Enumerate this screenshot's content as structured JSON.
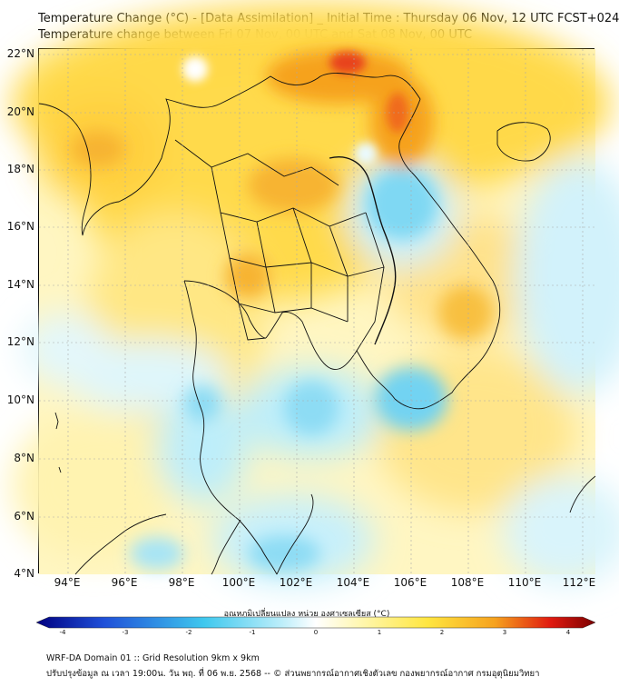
{
  "header": {
    "title_line1": "Temperature Change (°C) - [Data Assimilation] _ Initial Time : Thursday 06 Nov, 12 UTC FCST+024",
    "title_line2": "Temperature change between Fri 07 Nov, 00 UTC and Sat 08 Nov, 00 UTC"
  },
  "map": {
    "lat_labels": [
      "22°N",
      "20°N",
      "18°N",
      "16°N",
      "14°N",
      "12°N",
      "10°N",
      "8°N",
      "6°N",
      "4°N"
    ],
    "lon_labels": [
      "94°E",
      "96°E",
      "98°E",
      "100°E",
      "102°E",
      "104°E",
      "106°E",
      "108°E",
      "110°E",
      "112°E"
    ]
  },
  "colorbar": {
    "title": "อุณหภูมิเปลี่ยนแปลง หน่วย องศาเซลเซียส (°C)",
    "ticks": [
      "-4",
      "-3",
      "-2",
      "-1",
      "0",
      "1",
      "2",
      "3",
      "4"
    ],
    "colors": {
      "dark_blue": "#000080",
      "blue": "#1f4fd8",
      "cyan": "#3fc8ee",
      "light_cyan": "#bdeefa",
      "white": "#ffffff",
      "light_yellow": "#fff7b0",
      "yellow": "#ffe640",
      "orange": "#f6a21e",
      "red": "#e01a10",
      "dark_red": "#7a0000"
    }
  },
  "footer": {
    "line1": "WRF-DA Domain 01 :: Grid Resolution 9km x 9km",
    "line2": "ปรับปรุงข้อมูล ณ เวลา 19:00น. วัน พฤ. ที่ 06 พ.ย. 2568 -- © ส่วนพยากรณ์อากาศเชิงตัวเลข กองพยากรณ์อากาศ กรมอุตุนิยมวิทยา"
  }
}
